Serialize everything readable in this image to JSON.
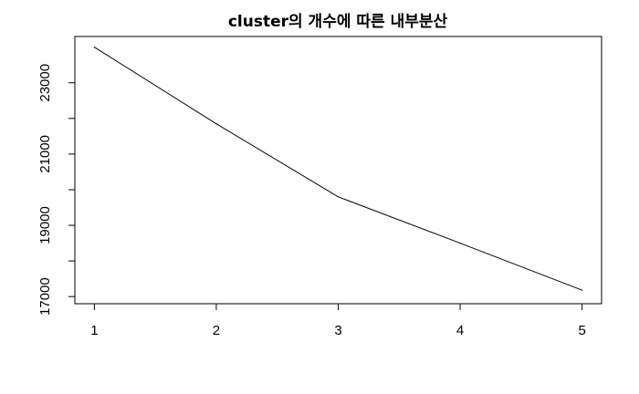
{
  "chart_data": {
    "type": "line",
    "title": "cluster의 개수에 따른 내부분산",
    "xlabel": "",
    "ylabel": "",
    "x": [
      1,
      2,
      3,
      4,
      5
    ],
    "values": [
      24000,
      21850,
      19800,
      18500,
      17180
    ],
    "xlim": [
      0.84,
      5.16
    ],
    "ylim": [
      16800,
      24300
    ],
    "x_ticks": [
      1,
      2,
      3,
      4,
      5
    ],
    "y_ticks": [
      17000,
      19000,
      21000,
      23000
    ],
    "y_minor_ticks": [
      18000,
      20000,
      22000
    ],
    "grid": false,
    "line_color": "#000000"
  }
}
